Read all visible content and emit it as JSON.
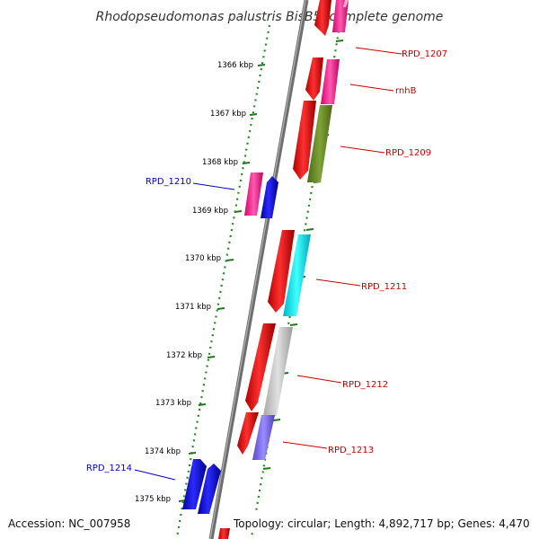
{
  "title": "Rhodopseudomonas palustris BisB5, complete genome",
  "footer": {
    "accession": "Accession: NC_007958",
    "topology": "Topology: circular; Length: 4,892,717 bp; Genes: 4,470"
  },
  "ruler": {
    "ticks": [
      {
        "label": "1366 kbp"
      },
      {
        "label": "1367 kbp"
      },
      {
        "label": "1368 kbp"
      },
      {
        "label": "1369 kbp"
      },
      {
        "label": "1370 kbp"
      },
      {
        "label": "1371 kbp"
      },
      {
        "label": "1372 kbp"
      },
      {
        "label": "1373 kbp"
      },
      {
        "label": "1374 kbp"
      },
      {
        "label": "1375 kbp"
      }
    ]
  },
  "genes": [
    {
      "id": "RPD_1207",
      "label": "RPD_1207",
      "strand": "+",
      "label_color": "#cc0000"
    },
    {
      "id": "rnhB",
      "label": "rnhB",
      "strand": "+",
      "label_color": "#cc0000"
    },
    {
      "id": "RPD_1209",
      "label": "RPD_1209",
      "strand": "+",
      "label_color": "#cc0000"
    },
    {
      "id": "RPD_1210",
      "label": "RPD_1210",
      "strand": "-",
      "label_color": "#0000cc"
    },
    {
      "id": "RPD_1211",
      "label": "RPD_1211",
      "strand": "+",
      "label_color": "#cc0000"
    },
    {
      "id": "RPD_1212",
      "label": "RPD_1212",
      "strand": "+",
      "label_color": "#cc0000"
    },
    {
      "id": "RPD_1213",
      "label": "RPD_1213",
      "strand": "+",
      "label_color": "#cc0000"
    },
    {
      "id": "RPD_1214",
      "label": "RPD_1214",
      "strand": "-",
      "label_color": "#0000cc"
    }
  ],
  "colors": {
    "backbone": "#808080",
    "dotted_guide": "#228b22",
    "tick": "#1a7a1a",
    "cds": "#ff0000",
    "minus_cds": "#0000ff",
    "rnhB_cog": "#ff3399",
    "RPD_1207_cog": "#ff3399",
    "RPD_1209_cog": "#6b8e23",
    "RPD_1210_cog": "#ff3399",
    "RPD_1211_cog": "#00e5e5",
    "RPD_1212_cog": "#c0c0c0",
    "RPD_1213_cog": "#7b68ee"
  }
}
